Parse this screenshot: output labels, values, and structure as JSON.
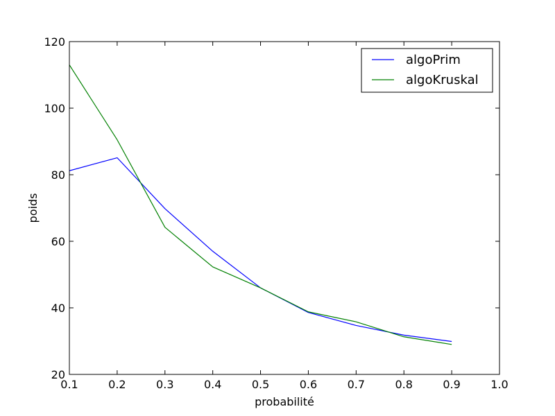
{
  "chart_data": {
    "type": "line",
    "title": "",
    "xlabel": "probabilité",
    "ylabel": "poids",
    "xlim": [
      0.1,
      1.0
    ],
    "ylim": [
      20,
      120
    ],
    "xticks": [
      "0.1",
      "0.2",
      "0.3",
      "0.4",
      "0.5",
      "0.6",
      "0.7",
      "0.8",
      "0.9",
      "1.0"
    ],
    "yticks": [
      "20",
      "40",
      "60",
      "80",
      "100",
      "120"
    ],
    "x": [
      0.1,
      0.2,
      0.3,
      0.4,
      0.5,
      0.6,
      0.7,
      0.8,
      0.9
    ],
    "grid": false,
    "legend_position": "top-right",
    "series": [
      {
        "name": "algoPrim",
        "color": "#0000ff",
        "values": [
          81.2,
          85.1,
          69.8,
          57.0,
          46.0,
          38.6,
          34.7,
          31.8,
          29.9
        ]
      },
      {
        "name": "algoKruskal",
        "color": "#008000",
        "values": [
          113.0,
          90.5,
          64.2,
          52.3,
          46.0,
          38.8,
          35.8,
          31.3,
          29.0
        ]
      }
    ]
  }
}
